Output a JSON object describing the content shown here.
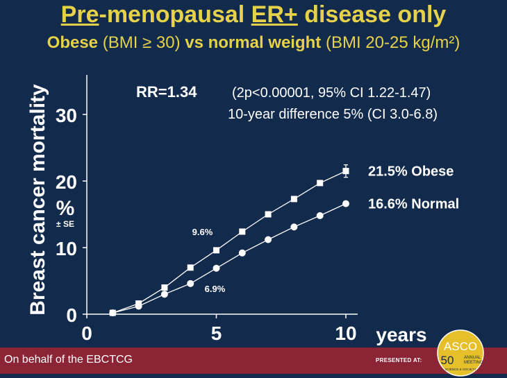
{
  "title": {
    "part1": "Pre",
    "part2": "-menopausal ",
    "part3": "ER+",
    "part4": " disease only"
  },
  "subtitle": {
    "obese_bold": "Obese",
    "obese_def": " (BMI ≥ 30) ",
    "vs": "vs normal weight",
    "normal_def": " (BMI 20-25 kg/m²)"
  },
  "stats": {
    "rr": "RR=1.34",
    "ci": "(2p<0.00001,  95% CI  1.22-1.47)",
    "diff": "10-year difference 5% (CI 3.0-6.8)"
  },
  "footer": {
    "text": "On behalf of the EBCTCG",
    "presented": "PRESENTED AT:"
  },
  "logo": {
    "asco": "ASCO",
    "annual": "50",
    "sub1": "ANNUAL",
    "sub2": "MEETING",
    "sub3": "SCIENCE & SOCIETY"
  },
  "colors": {
    "background": "#122a4c",
    "title": "#e6d24a",
    "footer": "#8b2435",
    "series": "#ffffff"
  },
  "chart_data": {
    "type": "line",
    "ylabel": "Breast cancer mortality",
    "ylabel_unit": "%",
    "ylabel_unit_sub": "± SE",
    "xlabel": "years",
    "xlim": [
      0,
      10
    ],
    "ylim": [
      0,
      30
    ],
    "xticks": [
      "0",
      "5",
      "10"
    ],
    "yticks": [
      "0",
      "10",
      "20",
      "30"
    ],
    "series": [
      {
        "name": "Obese",
        "marker": "square",
        "x": [
          1,
          2,
          3,
          4,
          5,
          6,
          7,
          8,
          9,
          10
        ],
        "y": [
          0.2,
          1.6,
          4.0,
          7.0,
          9.6,
          12.4,
          15.0,
          17.3,
          19.7,
          21.5
        ],
        "end_label": "21.5% Obese"
      },
      {
        "name": "Normal",
        "marker": "circle",
        "x": [
          1,
          2,
          3,
          4,
          5,
          6,
          7,
          8,
          9,
          10
        ],
        "y": [
          0.2,
          1.2,
          3.0,
          4.6,
          6.9,
          9.2,
          11.2,
          13.1,
          14.8,
          16.6
        ],
        "end_label": "16.6% Normal"
      }
    ],
    "annotations": [
      "9.6%",
      "6.9%"
    ]
  }
}
